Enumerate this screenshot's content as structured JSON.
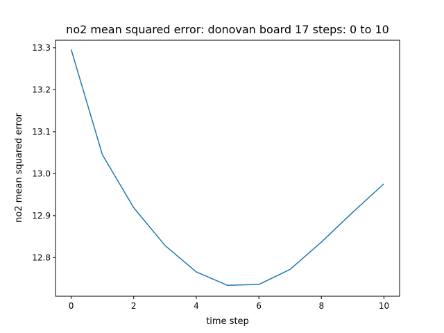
{
  "chart_data": {
    "type": "line",
    "title": "no2 mean squared error: donovan board 17 steps: 0 to 10",
    "xlabel": "time step",
    "ylabel": "no2 mean squared error",
    "xlim": [
      -0.5,
      10.5
    ],
    "ylim": [
      12.708,
      13.318
    ],
    "xticks": [
      0,
      2,
      4,
      6,
      8,
      10
    ],
    "yticks": [
      12.8,
      12.9,
      13.0,
      13.1,
      13.2,
      13.3
    ],
    "xtick_labels": [
      "0",
      "2",
      "4",
      "6",
      "8",
      "10"
    ],
    "ytick_labels": [
      "12.8",
      "12.9",
      "13.0",
      "13.1",
      "13.2",
      "13.3"
    ],
    "grid": false,
    "line_color": "#1f77b4",
    "series": [
      {
        "x": [
          0,
          1,
          2,
          3,
          4,
          5,
          6,
          7,
          8,
          9,
          10
        ],
        "y": [
          13.296,
          13.045,
          12.919,
          12.829,
          12.766,
          12.734,
          12.736,
          12.772,
          12.837,
          12.908,
          12.976
        ]
      }
    ]
  }
}
